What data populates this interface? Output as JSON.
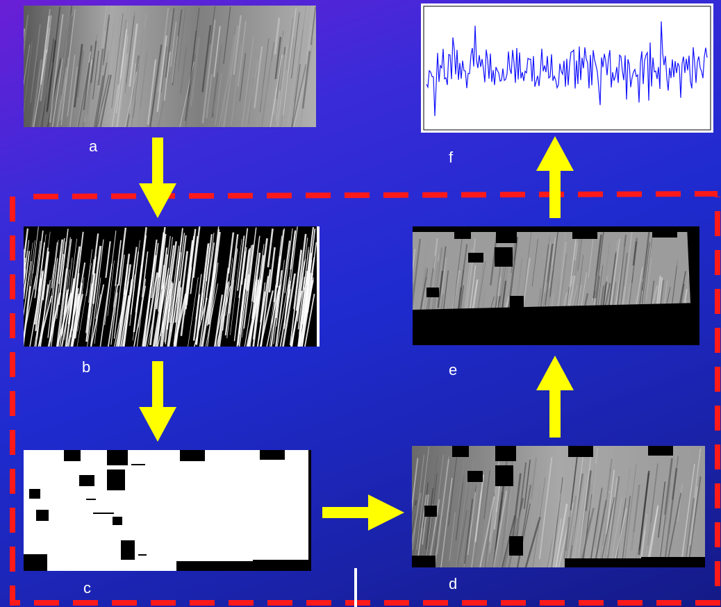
{
  "labels": {
    "a": "a",
    "b": "b",
    "c": "c",
    "d": "d",
    "e": "e",
    "f": "f"
  },
  "colors": {
    "arrow": "#ffff00",
    "dashed_border": "#ff1a1a",
    "signal": "#1010ff",
    "label_text": "#ffffff"
  }
}
